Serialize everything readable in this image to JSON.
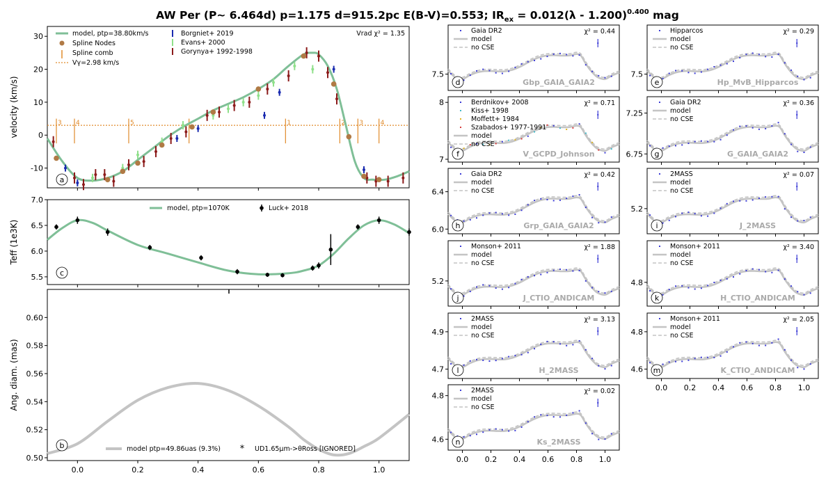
{
  "title": "AW Per (P~ 6.464d) p=1.175 d=915.2pc E(B-V)=0.553; IR",
  "title_sub": "ex",
  "title_mid": " = 0.012(λ - 1.200)",
  "title_sup": "0.400",
  "title_end": " mag",
  "colors": {
    "model": "#7fbf97",
    "gray": "#c4c4c4",
    "node": "#b07a45",
    "comb": "#e08a2a",
    "borgniet": "#1a2bb0",
    "evans": "#8fe08a",
    "gorynya": "#8b1a1a",
    "luck": "#000000",
    "phot": "#3b3bd6"
  },
  "chart_data": [
    {
      "id": "a",
      "type": "line",
      "xlim": [
        -0.1,
        1.1
      ],
      "ylim": [
        -16,
        33
      ],
      "yticks": [
        -10,
        0,
        10,
        20,
        30
      ],
      "ylabel": "velocity (km/s)",
      "annotation": "Vrad χ² = 1.35",
      "legend": [
        "model, ptp=38.80km/s",
        "Spline Nodes",
        "Spline comb",
        "Vγ=2.98 km/s",
        "Borgniet+ 2019",
        "Evans+ 2000",
        "Gorynya+ 1992-1998"
      ],
      "vgamma": 2.98,
      "model": {
        "x": [
          -0.1,
          -0.05,
          0.0,
          0.05,
          0.1,
          0.15,
          0.2,
          0.25,
          0.3,
          0.35,
          0.4,
          0.45,
          0.5,
          0.55,
          0.6,
          0.65,
          0.7,
          0.75,
          0.78,
          0.8,
          0.83,
          0.86,
          0.89,
          0.92,
          0.95,
          0.98,
          1.02,
          1.06,
          1.1
        ],
        "y": [
          -1,
          -8,
          -13,
          -13.8,
          -13,
          -11,
          -7.5,
          -4,
          -0.5,
          2.5,
          5,
          7.5,
          9.5,
          11.5,
          14,
          17,
          21,
          24.5,
          25,
          24.5,
          21,
          14,
          3,
          -8,
          -13,
          -13.5,
          -13.5,
          -12.5,
          -11
        ]
      },
      "nodes": {
        "x": [
          -0.07,
          0.1,
          0.15,
          0.2,
          0.28,
          0.38,
          0.45,
          0.6,
          0.75,
          0.85,
          0.9,
          0.95,
          1.0
        ],
        "y": [
          -7,
          -13.5,
          -11,
          -8.5,
          -3,
          2.5,
          7,
          14,
          24,
          15.5,
          -0.5,
          -12.5,
          -13.5
        ]
      },
      "comb": {
        "x": [
          -0.07,
          -0.01,
          0.17,
          0.37,
          0.69,
          0.87,
          0.93,
          1.0
        ],
        "labels": [
          "3",
          "4",
          "5",
          "",
          "1",
          "2",
          "3",
          "4"
        ]
      },
      "borgniet": {
        "x": [
          -0.04,
          0.0,
          0.33,
          0.4,
          0.62,
          0.67,
          0.85,
          0.95
        ],
        "y": [
          -10,
          -14.5,
          -1,
          2,
          6,
          13,
          20,
          -10.5
        ]
      },
      "evans": {
        "x": [
          0.05,
          0.15,
          0.2,
          0.28,
          0.35,
          0.45,
          0.5,
          0.55,
          0.6,
          0.65,
          0.72,
          0.78
        ],
        "y": [
          -13,
          -10,
          -6,
          -2,
          3,
          6,
          8,
          10,
          12,
          16,
          21,
          20
        ]
      },
      "gorynya": {
        "x": [
          -0.08,
          -0.01,
          0.02,
          0.06,
          0.09,
          0.12,
          0.17,
          0.22,
          0.26,
          0.31,
          0.36,
          0.43,
          0.47,
          0.52,
          0.57,
          0.63,
          0.7,
          0.76,
          0.8,
          0.83,
          0.86,
          0.96,
          0.99,
          1.03,
          1.08
        ],
        "y": [
          -2,
          -13,
          -15,
          -12,
          -12,
          -14,
          -9,
          -8,
          -5,
          -1,
          1,
          6,
          7,
          9,
          10,
          14,
          18,
          25,
          24,
          19,
          11,
          -13,
          -14,
          -14,
          -13
        ]
      }
    },
    {
      "id": "c",
      "type": "line",
      "xlim": [
        -0.1,
        1.1
      ],
      "ylim": [
        5.35,
        7.0
      ],
      "yticks": [
        5.5,
        6.0,
        6.5,
        7.0
      ],
      "yticklabels": [
        "5.5",
        "6.0",
        "6.5",
        "7.0"
      ],
      "ylabel": "Teff (1e3K)",
      "legend": [
        "model, ptp=1070K",
        "Luck+ 2018"
      ],
      "model": {
        "x": [
          -0.1,
          -0.05,
          0.0,
          0.05,
          0.1,
          0.2,
          0.3,
          0.4,
          0.5,
          0.6,
          0.7,
          0.75,
          0.8,
          0.85,
          0.9,
          0.95,
          1.0,
          1.05,
          1.1
        ],
        "y": [
          6.22,
          6.45,
          6.6,
          6.55,
          6.4,
          6.12,
          5.95,
          5.78,
          5.62,
          5.55,
          5.57,
          5.62,
          5.72,
          5.95,
          6.25,
          6.5,
          6.6,
          6.52,
          6.35
        ]
      },
      "luck": {
        "x": [
          -0.07,
          0.0,
          0.1,
          0.24,
          0.41,
          0.53,
          0.63,
          0.68,
          0.78,
          0.8,
          0.84,
          0.93,
          1.0,
          1.1
        ],
        "y": [
          6.47,
          6.6,
          6.37,
          6.07,
          5.87,
          5.6,
          5.54,
          5.53,
          5.67,
          5.72,
          6.03,
          6.47,
          6.6,
          6.37
        ],
        "err": [
          0.05,
          0.07,
          0.07,
          0.05,
          0.05,
          0.05,
          0.04,
          0.04,
          0.05,
          0.06,
          0.3,
          0.05,
          0.07,
          0.07
        ]
      }
    },
    {
      "id": "b",
      "type": "line",
      "xlim": [
        -0.1,
        1.1
      ],
      "ylim": [
        0.498,
        0.62
      ],
      "yticks": [
        0.5,
        0.52,
        0.54,
        0.56,
        0.58,
        0.6
      ],
      "yticklabels": [
        "0.50",
        "0.52",
        "0.54",
        "0.56",
        "0.58",
        "0.60"
      ],
      "xticks": [
        0.0,
        0.2,
        0.4,
        0.6,
        0.8,
        1.0
      ],
      "xticklabels": [
        "0.0",
        "0.2",
        "0.4",
        "0.6",
        "0.8",
        "1.0"
      ],
      "ylabel": "Ang. diam. (mas)",
      "legend": [
        "model ptp=49.86uas (9.3%)",
        "UD1.65μm->θRoss [IGNORED]"
      ],
      "model": {
        "x": [
          -0.1,
          0.0,
          0.1,
          0.2,
          0.3,
          0.4,
          0.5,
          0.6,
          0.7,
          0.75,
          0.8,
          0.85,
          0.9,
          0.95,
          1.0,
          1.1
        ],
        "y": [
          0.503,
          0.51,
          0.526,
          0.541,
          0.55,
          0.553,
          0.548,
          0.537,
          0.522,
          0.513,
          0.506,
          0.502,
          0.503,
          0.508,
          0.514,
          0.531
        ]
      }
    }
  ],
  "phot_panels": [
    {
      "id": "d",
      "band": "Gbp_GAIA_GAIA2",
      "legend": [
        "Gaia DR2",
        "model",
        "no CSE"
      ],
      "chi": "χ² = 0.44",
      "ylim": [
        7.35,
        7.95
      ],
      "yticks": [
        7.5
      ],
      "yticklabels": [
        "7.5"
      ]
    },
    {
      "id": "e",
      "band": "Hp_MvB_Hipparcos",
      "legend": [
        "Hipparcos",
        "model",
        "no CSE"
      ],
      "chi": "χ² = 0.29",
      "ylim": [
        7.35,
        7.95
      ],
      "yticks": [
        7.5
      ],
      "yticklabels": [
        "7.5"
      ]
    },
    {
      "id": "f",
      "band": "V_GCPD_Johnson",
      "legend": [
        "Berdnikov+ 2008",
        "Kiss+ 1998",
        "Moffett+ 1984",
        "Szabados+ 1977-1991",
        "model",
        "no CSE"
      ],
      "chi": "χ² = 0.71",
      "ylim": [
        6.95,
        8.1
      ],
      "yticks": [
        7,
        8
      ],
      "yticklabels": [
        "7",
        "8"
      ]
    },
    {
      "id": "g",
      "band": "G_GAIA_GAIA2",
      "legend": [
        "Gaia DR2",
        "model",
        "no CSE"
      ],
      "chi": "χ² = 0.36",
      "ylim": [
        6.65,
        7.45
      ],
      "yticks": [
        6.75,
        7.25
      ],
      "yticklabels": [
        "6.75",
        "7.25"
      ]
    },
    {
      "id": "h",
      "band": "Grp_GAIA_GAIA2",
      "legend": [
        "Gaia DR2",
        "model",
        "no CSE"
      ],
      "chi": "χ² = 0.42",
      "ylim": [
        5.95,
        6.65
      ],
      "yticks": [
        6.0,
        6.4
      ],
      "yticklabels": [
        "6.0",
        "6.4"
      ]
    },
    {
      "id": "i",
      "band": "J_2MASS",
      "legend": [
        "2MASS",
        "model",
        "no CSE"
      ],
      "chi": "χ² = 0.07",
      "ylim": [
        4.95,
        5.6
      ],
      "yticks": [
        5.2
      ],
      "yticklabels": [
        "5.2"
      ]
    },
    {
      "id": "j",
      "band": "J_CTIO_ANDICAM",
      "legend": [
        "Monson+ 2011",
        "model",
        "no CSE"
      ],
      "chi": "χ² = 1.88",
      "ylim": [
        4.95,
        5.6
      ],
      "yticks": [
        5.2
      ],
      "yticklabels": [
        "5.2"
      ]
    },
    {
      "id": "k",
      "band": "H_CTIO_ANDICAM",
      "legend": [
        "Monson+ 2011",
        "model",
        "no CSE"
      ],
      "chi": "χ² = 3.40",
      "ylim": [
        4.6,
        5.15
      ],
      "yticks": [
        4.8
      ],
      "yticklabels": [
        "4.8"
      ]
    },
    {
      "id": "l",
      "band": "H_2MASS",
      "legend": [
        "2MASS",
        "model",
        "no CSE"
      ],
      "chi": "χ² = 3.13",
      "ylim": [
        4.65,
        5.0
      ],
      "yticks": [
        4.7,
        4.9
      ],
      "yticklabels": [
        "4.7",
        "4.9"
      ]
    },
    {
      "id": "m",
      "band": "K_CTIO_ANDICAM",
      "legend": [
        "Monson+ 2011",
        "model",
        "no CSE"
      ],
      "chi": "χ² = 2.05",
      "ylim": [
        4.55,
        4.9
      ],
      "yticks": [
        4.6,
        4.8
      ],
      "yticklabels": [
        "4.6",
        "4.8"
      ]
    },
    {
      "id": "n",
      "band": "Ks_2MASS",
      "legend": [
        "2MASS",
        "model",
        "no CSE"
      ],
      "chi": "χ² = 0.02",
      "ylim": [
        4.55,
        4.85
      ],
      "yticks": [
        4.6,
        4.8
      ],
      "yticklabels": [
        "4.6",
        "4.8"
      ]
    }
  ],
  "phot_xlim": [
    -0.1,
    1.1
  ],
  "phot_xticks": [
    0.0,
    0.2,
    0.4,
    0.6,
    0.8,
    1.0
  ],
  "phot_xticklabels": [
    "0.0",
    "0.2",
    "0.4",
    "0.6",
    "0.8",
    "1.0"
  ]
}
